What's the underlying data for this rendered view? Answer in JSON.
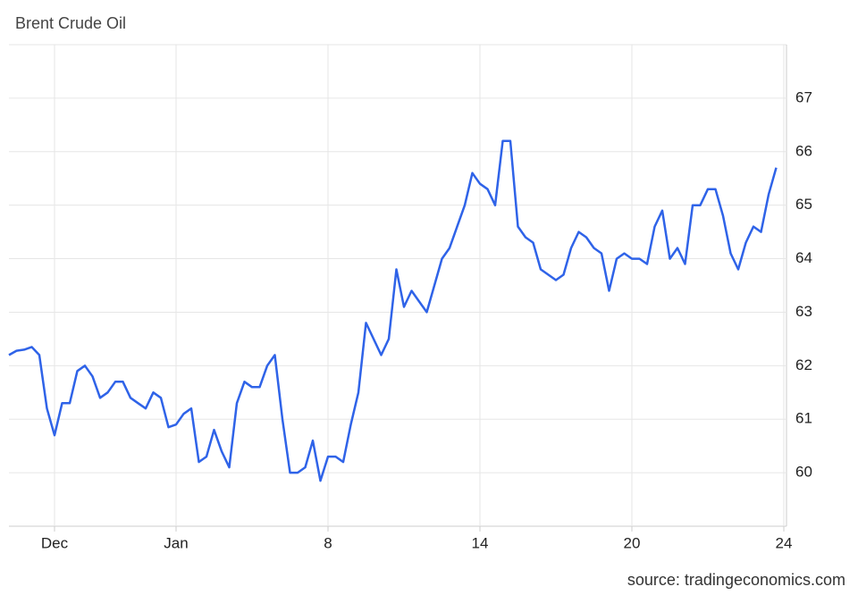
{
  "chart_data": {
    "type": "line",
    "title": "Brent Crude Oil",
    "source": "source: tradingeconomics.com",
    "categories": [
      null,
      null,
      null,
      null,
      null,
      null,
      "Dec",
      null,
      null,
      null,
      null,
      null,
      null,
      null,
      null,
      null,
      null,
      null,
      null,
      null,
      null,
      null,
      "Jan",
      null,
      null,
      null,
      null,
      null,
      null,
      null,
      null,
      null,
      null,
      null,
      null,
      null,
      null,
      null,
      null,
      null,
      null,
      null,
      "8",
      null,
      null,
      null,
      null,
      null,
      null,
      null,
      null,
      null,
      null,
      null,
      null,
      null,
      null,
      null,
      null,
      null,
      null,
      null,
      "14",
      null,
      null,
      null,
      null,
      null,
      null,
      null,
      null,
      null,
      null,
      null,
      null,
      null,
      null,
      null,
      null,
      null,
      null,
      null,
      "20",
      null,
      null,
      null,
      null,
      null,
      null,
      null,
      null,
      null,
      null,
      null,
      null,
      null,
      null,
      null,
      null,
      null,
      null,
      null,
      "24"
    ],
    "series": [
      {
        "name": "Brent Crude Oil",
        "color": "#2f63e8",
        "values": [
          62.2,
          62.28,
          62.3,
          62.35,
          62.2,
          61.2,
          60.7,
          61.3,
          61.3,
          61.9,
          62.0,
          61.8,
          61.4,
          61.5,
          61.7,
          61.7,
          61.4,
          61.3,
          61.2,
          61.5,
          61.4,
          60.85,
          60.9,
          61.1,
          61.2,
          60.2,
          60.3,
          60.8,
          60.4,
          60.1,
          61.3,
          61.7,
          61.6,
          61.6,
          62.0,
          62.2,
          61.0,
          60.0,
          60.0,
          60.1,
          60.6,
          59.85,
          60.3,
          60.3,
          60.2,
          60.9,
          61.5,
          62.8,
          62.5,
          62.2,
          62.5,
          63.8,
          63.1,
          63.4,
          63.2,
          63.0,
          63.5,
          64.0,
          64.2,
          64.6,
          65.0,
          65.6,
          65.4,
          65.3,
          65.0,
          66.2,
          66.2,
          64.6,
          64.4,
          64.3,
          63.8,
          63.7,
          63.6,
          63.7,
          64.2,
          64.5,
          64.4,
          64.2,
          64.1,
          63.4,
          64.0,
          64.1,
          64.0,
          64.0,
          63.9,
          64.6,
          64.9,
          64.0,
          64.2,
          63.9,
          65.0,
          65.0,
          65.3,
          65.3,
          64.8,
          64.1,
          63.8,
          64.3,
          64.6,
          64.5,
          65.2,
          65.7,
          null
        ]
      }
    ],
    "ylim": [
      59,
      68
    ],
    "yticks": [
      60,
      61,
      62,
      63,
      64,
      65,
      66,
      67
    ],
    "grid": true
  }
}
